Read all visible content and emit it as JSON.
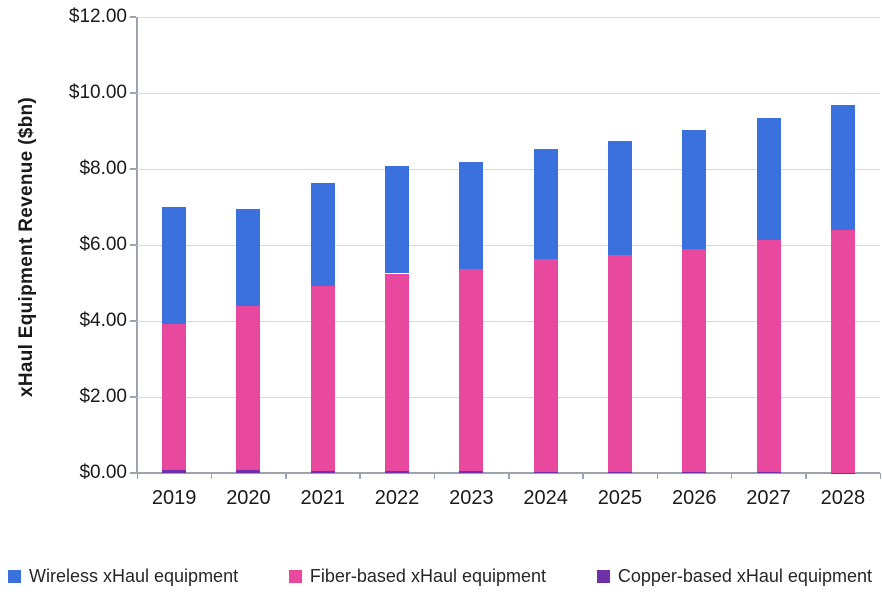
{
  "chart_data": {
    "type": "bar",
    "stacked": true,
    "title": "",
    "xlabel": "",
    "ylabel": "xHaul Equipment Revenue ($bn)",
    "categories": [
      "2019",
      "2020",
      "2021",
      "2022",
      "2023",
      "2024",
      "2025",
      "2026",
      "2027",
      "2028"
    ],
    "series": [
      {
        "name": "Copper-based xHaul equipment",
        "color": "#7030a8",
        "values": [
          0.08,
          0.07,
          0.06,
          0.05,
          0.04,
          0.03,
          0.03,
          0.02,
          0.02,
          0.01
        ]
      },
      {
        "name": "Fiber-based xHaul equipment",
        "color": "#e8489e",
        "values": [
          3.83,
          4.33,
          4.85,
          5.2,
          5.33,
          5.59,
          5.72,
          5.88,
          6.11,
          6.39
        ]
      },
      {
        "name": "Wireless xHaul equipment",
        "color": "#3a71df",
        "values": [
          3.09,
          2.55,
          2.73,
          2.83,
          2.81,
          2.9,
          3.0,
          3.13,
          3.22,
          3.28
        ]
      }
    ],
    "stack_totals": [
      7.0,
      6.95,
      7.64,
      8.08,
      8.18,
      8.52,
      8.75,
      9.03,
      9.35,
      9.68
    ],
    "ylim": [
      0,
      12
    ],
    "ytick_step": 2,
    "ytick_labels": [
      "$0.00",
      "$2.00",
      "$4.00",
      "$6.00",
      "$8.00",
      "$10.00",
      "$12.00"
    ],
    "grid": true,
    "legend_position": "bottom"
  },
  "legend": {
    "items": [
      {
        "label": "Wireless xHaul equipment",
        "color": "#3a71df"
      },
      {
        "label": "Fiber-based xHaul equipment",
        "color": "#e8489e"
      },
      {
        "label": "Copper-based xHaul equipment",
        "color": "#7030a8"
      }
    ]
  },
  "colors": {
    "gridline": "#d9d9d9",
    "axis": "#9ba3af",
    "text": "#1a1a1a"
  }
}
